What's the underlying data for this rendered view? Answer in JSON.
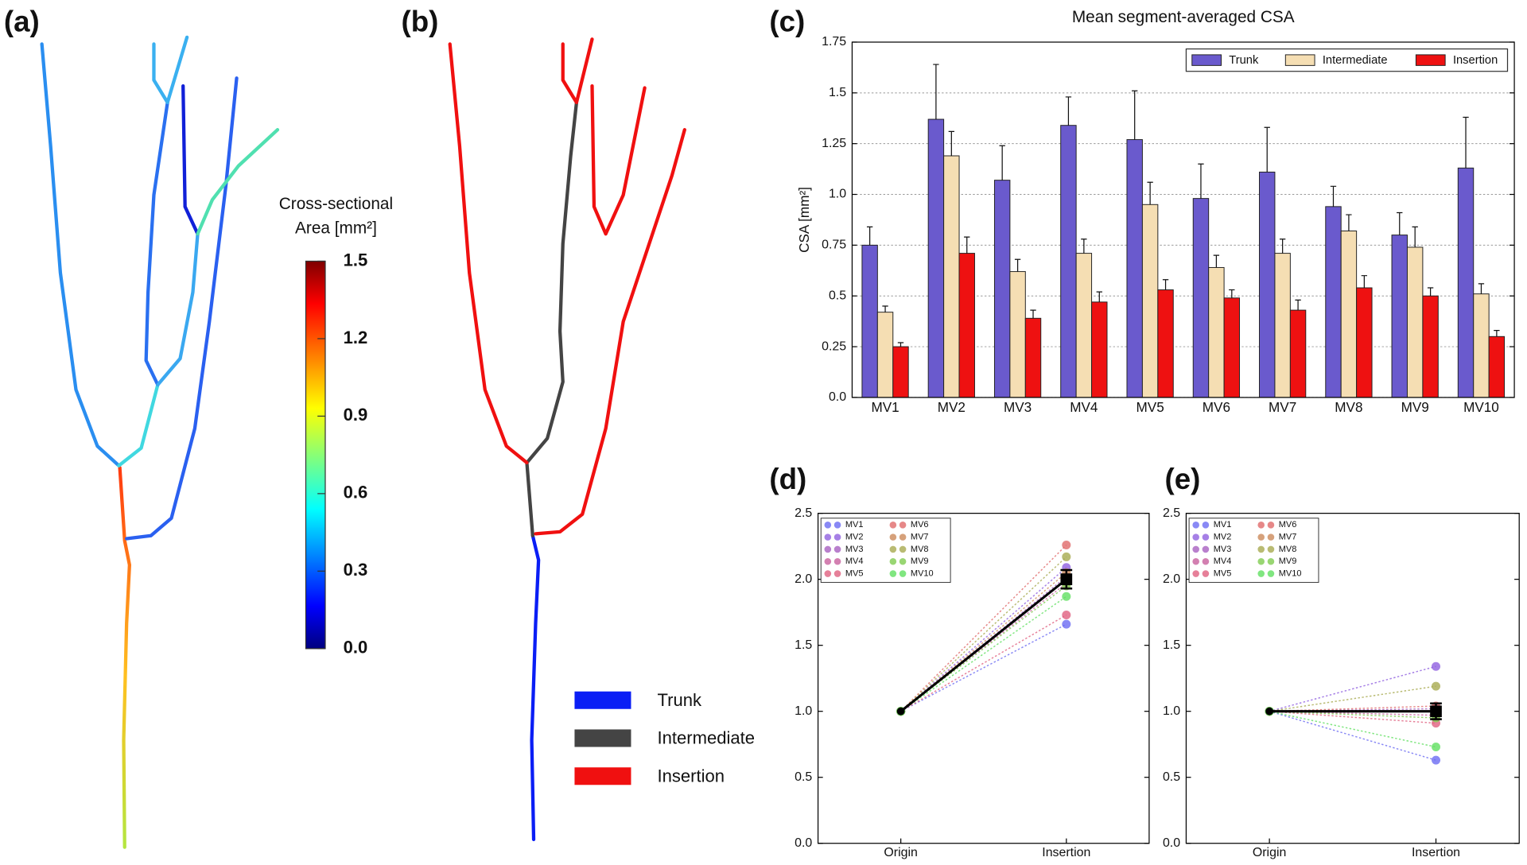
{
  "panel_labels": [
    "(a)",
    "(b)",
    "(c)",
    "(d)",
    "(e)"
  ],
  "colorbar": {
    "title": [
      "Cross-sectional",
      "Area [mm²]"
    ],
    "ylim": [
      0,
      1.5
    ],
    "ticks": [
      {
        "value": 0,
        "label": "0.0"
      },
      {
        "value": 0.3,
        "label": "0.3"
      },
      {
        "value": 0.6,
        "label": "0.6"
      },
      {
        "value": 0.9,
        "label": "0.9"
      },
      {
        "value": 1.2,
        "label": "1.2"
      },
      1.5
    ]
  },
  "segment_legend": [
    {
      "name": "Trunk",
      "color": "#0a1ef5"
    },
    {
      "name": "Intermediate",
      "color": "#444444"
    },
    {
      "name": "Insertion",
      "color": "#f01010"
    }
  ],
  "chart_data": [
    {
      "type": "bar",
      "title": "Mean segment-averaged CSA",
      "ylabel": "CSA [mm²]",
      "categories": [
        "MV1",
        "MV2",
        "MV3",
        "MV4",
        "MV5",
        "MV6",
        "MV7",
        "MV8",
        "MV9",
        "MV10"
      ],
      "series": [
        {
          "name": "Trunk",
          "color": "#6a5acd",
          "values": [
            0.75,
            1.37,
            1.07,
            1.34,
            1.27,
            0.98,
            1.11,
            0.94,
            0.8,
            1.13
          ],
          "errors": [
            0.09,
            0.27,
            0.17,
            0.14,
            0.24,
            0.17,
            0.22,
            0.1,
            0.11,
            0.25
          ]
        },
        {
          "name": "Intermediate",
          "color": "#f5deb3",
          "values": [
            0.42,
            1.19,
            0.62,
            0.71,
            0.95,
            0.64,
            0.71,
            0.82,
            0.74,
            0.51
          ],
          "errors": [
            0.03,
            0.12,
            0.06,
            0.07,
            0.11,
            0.06,
            0.07,
            0.08,
            0.1,
            0.05
          ]
        },
        {
          "name": "Insertion",
          "color": "#ee1111",
          "values": [
            0.25,
            0.71,
            0.39,
            0.47,
            0.53,
            0.49,
            0.43,
            0.54,
            0.5,
            0.3
          ],
          "errors": [
            0.02,
            0.08,
            0.04,
            0.05,
            0.05,
            0.04,
            0.05,
            0.06,
            0.04,
            0.03
          ]
        }
      ],
      "ylim": [
        0,
        1.75
      ],
      "yticks": [
        {
          "value": 0,
          "label": "0.0"
        },
        0.25,
        0.5,
        0.75,
        {
          "value": 1,
          "label": "1.0"
        },
        1.25,
        1.5,
        1.75
      ],
      "grid": true,
      "legend": "upper right"
    },
    {
      "type": "line",
      "categories": [
        "Origin",
        "Insertion"
      ],
      "series": [
        {
          "name": "MV1",
          "color": "#6b6bf2",
          "values": [
            1.0,
            1.66
          ]
        },
        {
          "name": "MV2",
          "color": "#9060e0",
          "values": [
            1.0,
            2.09
          ]
        },
        {
          "name": "MV3",
          "color": "#a860c0",
          "values": [
            1.0,
            2.02
          ]
        },
        {
          "name": "MV4",
          "color": "#c8609e",
          "values": [
            1.0,
            1.97
          ]
        },
        {
          "name": "MV5",
          "color": "#e06080",
          "values": [
            1.0,
            1.73
          ]
        },
        {
          "name": "MV6",
          "color": "#e06a6a",
          "values": [
            1.0,
            2.26
          ]
        },
        {
          "name": "MV7",
          "color": "#cc8a5a",
          "values": [
            1.0,
            2.05
          ]
        },
        {
          "name": "MV8",
          "color": "#a8aa50",
          "values": [
            1.0,
            2.17
          ]
        },
        {
          "name": "MV9",
          "color": "#80cc50",
          "values": [
            1.0,
            1.95
          ]
        },
        {
          "name": "MV10",
          "color": "#60e060",
          "values": [
            1.0,
            1.87
          ]
        }
      ],
      "mean": {
        "color": "#000000",
        "values": [
          1.0,
          2.0
        ],
        "errors": [
          null,
          0.07
        ]
      },
      "ylim": [
        0,
        2.5
      ],
      "yticks": [
        {
          "value": 0,
          "label": "0.0"
        },
        0.5,
        {
          "value": 1,
          "label": "1.0"
        },
        1.5,
        {
          "value": 2,
          "label": "2.0"
        },
        2.5
      ],
      "legend": "upper left"
    },
    {
      "type": "line",
      "categories": [
        "Origin",
        "Insertion"
      ],
      "series": [
        {
          "name": "MV1",
          "color": "#6b6bf2",
          "values": [
            1.0,
            0.63
          ]
        },
        {
          "name": "MV2",
          "color": "#9060e0",
          "values": [
            1.0,
            1.34
          ]
        },
        {
          "name": "MV3",
          "color": "#a860c0",
          "values": [
            1.0,
            1.02
          ]
        },
        {
          "name": "MV4",
          "color": "#c8609e",
          "values": [
            1.0,
            0.97
          ]
        },
        {
          "name": "MV5",
          "color": "#e06080",
          "values": [
            1.0,
            0.91
          ]
        },
        {
          "name": "MV6",
          "color": "#e06a6a",
          "values": [
            1.0,
            1.04
          ]
        },
        {
          "name": "MV7",
          "color": "#cc8a5a",
          "values": [
            1.0,
            1.0
          ]
        },
        {
          "name": "MV8",
          "color": "#a8aa50",
          "values": [
            1.0,
            1.19
          ]
        },
        {
          "name": "MV9",
          "color": "#80cc50",
          "values": [
            1.0,
            0.95
          ]
        },
        {
          "name": "MV10",
          "color": "#60e060",
          "values": [
            1.0,
            0.73
          ]
        }
      ],
      "mean": {
        "color": "#000000",
        "values": [
          1.0,
          1.0
        ],
        "errors": [
          null,
          0.06
        ]
      },
      "ylim": [
        0,
        2.5
      ],
      "yticks": [
        {
          "value": 0,
          "label": "0.0"
        },
        0.5,
        {
          "value": 1,
          "label": "1.0"
        },
        1.5,
        {
          "value": 2,
          "label": "2.0"
        },
        2.5
      ],
      "legend": "upper left"
    }
  ]
}
